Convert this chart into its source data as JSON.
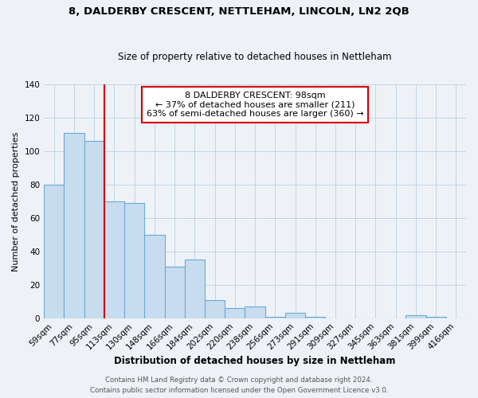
{
  "title1": "8, DALDERBY CRESCENT, NETTLEHAM, LINCOLN, LN2 2QB",
  "title2": "Size of property relative to detached houses in Nettleham",
  "xlabel": "Distribution of detached houses by size in Nettleham",
  "ylabel": "Number of detached properties",
  "bin_labels": [
    "59sqm",
    "77sqm",
    "95sqm",
    "113sqm",
    "130sqm",
    "148sqm",
    "166sqm",
    "184sqm",
    "202sqm",
    "220sqm",
    "238sqm",
    "256sqm",
    "273sqm",
    "291sqm",
    "309sqm",
    "327sqm",
    "345sqm",
    "363sqm",
    "381sqm",
    "399sqm",
    "416sqm"
  ],
  "bar_values": [
    80,
    111,
    106,
    70,
    69,
    50,
    31,
    35,
    11,
    6,
    7,
    1,
    3,
    1,
    0,
    0,
    0,
    0,
    2,
    1,
    0
  ],
  "bar_color": "#c8dcf0",
  "bar_edge_color": "#6aaad4",
  "property_line_color": "#cc0000",
  "annotation_text": "8 DALDERBY CRESCENT: 98sqm\n← 37% of detached houses are smaller (211)\n63% of semi-detached houses are larger (360) →",
  "annotation_box_color": "#ffffff",
  "annotation_box_edge_color": "#cc0000",
  "ylim": [
    0,
    140
  ],
  "yticks": [
    0,
    20,
    40,
    60,
    80,
    100,
    120,
    140
  ],
  "footer1": "Contains HM Land Registry data © Crown copyright and database right 2024.",
  "footer2": "Contains public sector information licensed under the Open Government Licence v3.0.",
  "background_color": "#eef2f7",
  "title1_fontsize": 9.5,
  "title2_fontsize": 8.5,
  "xlabel_fontsize": 8.5,
  "ylabel_fontsize": 8.0,
  "tick_fontsize": 7.5,
  "footer_fontsize": 6.2,
  "annotation_fontsize": 8.0
}
